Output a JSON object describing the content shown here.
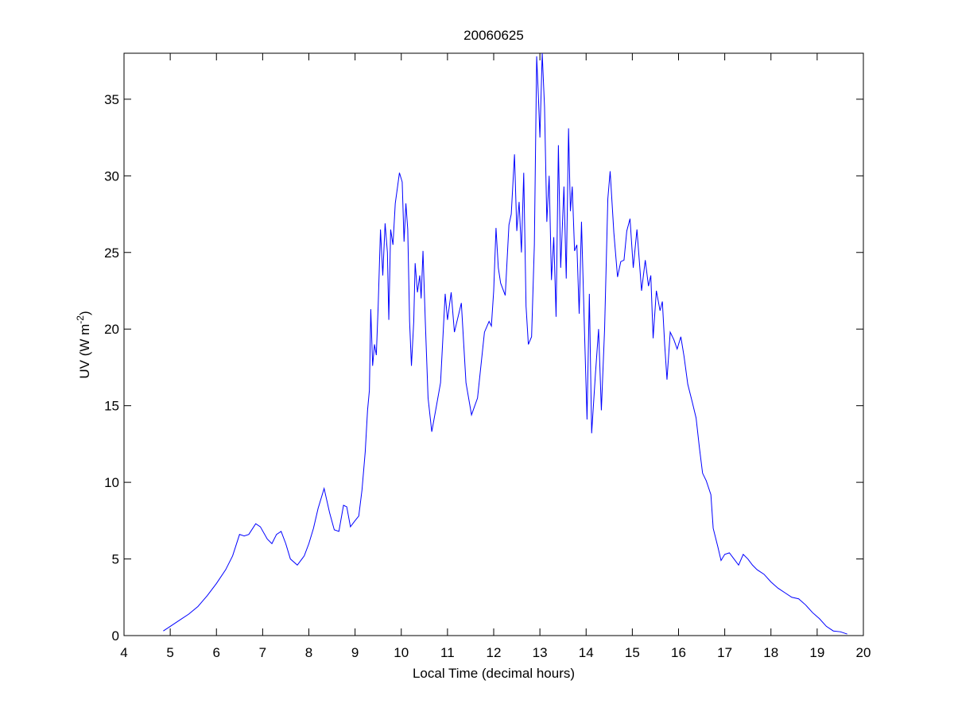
{
  "chart_data": {
    "type": "line",
    "title": "20060625",
    "xlabel": "Local Time (decimal hours)",
    "ylabel": [
      "UV (W m",
      "-2",
      ")"
    ],
    "xlim": [
      4,
      20
    ],
    "xticks": [
      4,
      5,
      6,
      7,
      8,
      9,
      10,
      11,
      12,
      13,
      14,
      15,
      16,
      17,
      18,
      19,
      20
    ],
    "ylim": [
      0,
      38
    ],
    "yticks": [
      0,
      5,
      10,
      15,
      20,
      25,
      30,
      35
    ],
    "grid": false,
    "x": [
      4.85,
      5.0,
      5.2,
      5.4,
      5.6,
      5.8,
      6.0,
      6.2,
      6.35,
      6.5,
      6.6,
      6.7,
      6.85,
      6.95,
      7.1,
      7.2,
      7.3,
      7.4,
      7.5,
      7.6,
      7.75,
      7.9,
      8.0,
      8.1,
      8.2,
      8.33,
      8.45,
      8.55,
      8.65,
      8.75,
      8.82,
      8.9,
      9.0,
      9.08,
      9.15,
      9.22,
      9.27,
      9.31,
      9.34,
      9.38,
      9.42,
      9.46,
      9.5,
      9.55,
      9.6,
      9.65,
      9.7,
      9.73,
      9.77,
      9.82,
      9.87,
      9.92,
      9.96,
      10.02,
      10.06,
      10.1,
      10.14,
      10.18,
      10.22,
      10.27,
      10.3,
      10.35,
      10.4,
      10.43,
      10.47,
      10.52,
      10.58,
      10.66,
      10.75,
      10.85,
      10.95,
      11.0,
      11.08,
      11.15,
      11.3,
      11.4,
      11.52,
      11.65,
      11.8,
      11.9,
      11.95,
      12.0,
      12.05,
      12.1,
      12.15,
      12.25,
      12.33,
      12.38,
      12.45,
      12.5,
      12.55,
      12.6,
      12.65,
      12.7,
      12.75,
      12.82,
      12.88,
      12.93,
      12.97,
      13.0,
      13.05,
      13.1,
      13.15,
      13.2,
      13.25,
      13.3,
      13.35,
      13.4,
      13.45,
      13.52,
      13.57,
      13.62,
      13.66,
      13.7,
      13.75,
      13.8,
      13.85,
      13.9,
      13.97,
      14.02,
      14.07,
      14.12,
      14.2,
      14.27,
      14.33,
      14.4,
      14.47,
      14.52,
      14.6,
      14.68,
      14.75,
      14.82,
      14.88,
      14.95,
      15.02,
      15.1,
      15.2,
      15.28,
      15.35,
      15.4,
      15.45,
      15.52,
      15.6,
      15.65,
      15.7,
      15.75,
      15.82,
      15.9,
      15.97,
      16.05,
      16.12,
      16.2,
      16.3,
      16.38,
      16.45,
      16.52,
      16.6,
      16.7,
      16.75,
      16.85,
      16.92,
      17.0,
      17.1,
      17.2,
      17.3,
      17.4,
      17.5,
      17.6,
      17.7,
      17.85,
      18.0,
      18.15,
      18.3,
      18.45,
      18.6,
      18.75,
      18.9,
      19.05,
      19.2,
      19.35,
      19.5,
      19.65
    ],
    "series": [
      {
        "color": "#0000ff",
        "values": [
          0.3,
          0.6,
          1.0,
          1.4,
          1.9,
          2.6,
          3.4,
          4.3,
          5.2,
          6.6,
          6.5,
          6.6,
          7.3,
          7.1,
          6.3,
          6.0,
          6.6,
          6.8,
          6.0,
          5.0,
          4.6,
          5.2,
          6.0,
          7.0,
          8.3,
          9.6,
          8.0,
          6.9,
          6.8,
          8.5,
          8.4,
          7.1,
          7.5,
          7.8,
          9.5,
          12,
          14.7,
          16,
          21.3,
          17.6,
          19,
          18.3,
          21.5,
          26.5,
          23.5,
          26.9,
          25,
          20.6,
          26.5,
          25.5,
          28.2,
          29.3,
          30.2,
          29.6,
          25.7,
          28.2,
          26.5,
          20.5,
          17.6,
          20.5,
          24.3,
          22.4,
          23.5,
          22,
          25.1,
          20.5,
          15.5,
          13.3,
          14.8,
          16.5,
          22.3,
          20.6,
          22.4,
          19.8,
          21.7,
          16.5,
          14.4,
          15.5,
          19.8,
          20.5,
          20.2,
          22.5,
          26.6,
          24,
          23,
          22.2,
          26.8,
          27.5,
          31.4,
          26.4,
          28.3,
          25,
          30.2,
          21.5,
          19,
          19.5,
          25.5,
          37.8,
          35,
          32.5,
          38,
          34.5,
          27,
          30,
          23.2,
          26,
          20.8,
          32,
          24,
          29.3,
          23.3,
          33.1,
          27.7,
          29.3,
          25.1,
          25.5,
          21,
          27,
          19.3,
          14.1,
          22.3,
          13.2,
          17,
          20,
          14.7,
          20,
          28.5,
          30.3,
          26.3,
          23.4,
          24.4,
          24.5,
          26.4,
          27.2,
          24,
          26.5,
          22.5,
          24.5,
          22.8,
          23.5,
          19.4,
          22.5,
          21.2,
          21.8,
          19,
          16.7,
          19.8,
          19.3,
          18.7,
          19.5,
          18.2,
          16.4,
          15.2,
          14.2,
          12.3,
          10.6,
          10.1,
          9.2,
          7,
          5.8,
          4.9,
          5.3,
          5.4,
          5.0,
          4.6,
          5.3,
          5.0,
          4.6,
          4.3,
          4.0,
          3.5,
          3.1,
          2.8,
          2.5,
          2.4,
          2.0,
          1.5,
          1.1,
          0.6,
          0.3,
          0.25,
          0.1
        ]
      }
    ]
  }
}
